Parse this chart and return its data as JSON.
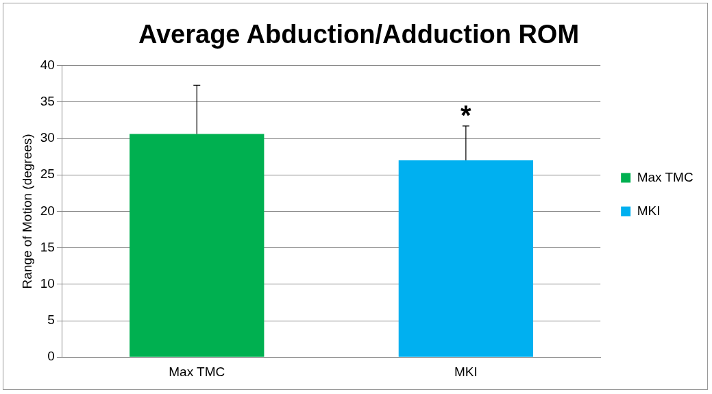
{
  "chart_data": {
    "type": "bar",
    "title": "Average Abduction/Adduction ROM",
    "ylabel": "Range of Motion (degrees)",
    "categories": [
      "Max TMC",
      "MKI"
    ],
    "series": [
      {
        "name": "Max TMC",
        "color": "#00b050",
        "values": [
          30.6,
          null
        ],
        "errors": [
          [
            30.6,
            37.3
          ],
          null
        ]
      },
      {
        "name": "MKI",
        "color": "#00b0f0",
        "values": [
          null,
          27.0
        ],
        "errors": [
          null,
          [
            27.0,
            31.7
          ]
        ]
      }
    ],
    "ylim": [
      0,
      40
    ],
    "yticks": [
      0,
      5,
      10,
      15,
      20,
      25,
      30,
      35,
      40
    ],
    "grid": "y",
    "legend": "right",
    "annotations": [
      "*"
    ]
  }
}
